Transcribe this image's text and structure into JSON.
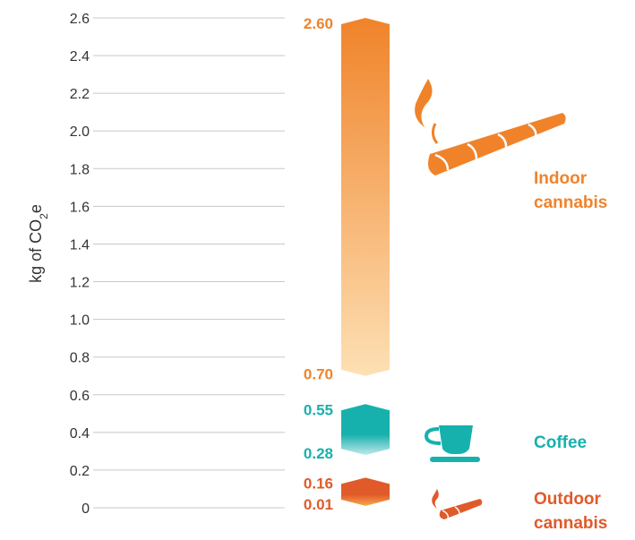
{
  "chart_data": {
    "type": "bar",
    "title": "",
    "ylabel": "kg of CO2e",
    "ylabel_parts": {
      "main": "kg of CO",
      "sub": "2",
      "tail": "e"
    },
    "ylim": [
      0,
      2.6
    ],
    "yticks": [
      {
        "value": 0,
        "label": "0"
      },
      {
        "value": 0.2,
        "label": "0.2"
      },
      {
        "value": 0.4,
        "label": "0.4"
      },
      {
        "value": 0.6,
        "label": "0.6"
      },
      {
        "value": 0.8,
        "label": "0.8"
      },
      {
        "value": 1.0,
        "label": "1.0"
      },
      {
        "value": 1.2,
        "label": "1.2"
      },
      {
        "value": 1.4,
        "label": "1.4"
      },
      {
        "value": 1.6,
        "label": "1.6"
      },
      {
        "value": 1.8,
        "label": "1.8"
      },
      {
        "value": 2.0,
        "label": "2.0"
      },
      {
        "value": 2.2,
        "label": "2.2"
      },
      {
        "value": 2.4,
        "label": "2.4"
      },
      {
        "value": 2.6,
        "label": "2.6"
      }
    ],
    "grid": true,
    "ranges": [
      {
        "name": "Indoor cannabis",
        "label_lines": [
          "Indoor",
          "cannabis"
        ],
        "low": 0.7,
        "high": 2.6,
        "low_label": "0.70",
        "high_label": "2.60",
        "color": "#f0832a",
        "light_color": "#fde0b4",
        "icon": "joint-icon"
      },
      {
        "name": "Coffee",
        "label_lines": [
          "Coffee"
        ],
        "low": 0.28,
        "high": 0.55,
        "low_label": "0.28",
        "high_label": "0.55",
        "color": "#17b1ad",
        "light_color": "#c2e9ec",
        "icon": "coffee-cup-icon"
      },
      {
        "name": "Outdoor cannabis",
        "label_lines": [
          "Outdoor",
          "cannabis"
        ],
        "low": 0.01,
        "high": 0.16,
        "low_label": "0.01",
        "high_label": "0.16",
        "color": "#e05a2a",
        "light_color": "#f7a94a",
        "icon": "small-joint-icon"
      }
    ]
  },
  "colors": {
    "grid": "#c8c8c8",
    "indoor": "#f0832a",
    "coffee": "#17b1ad",
    "outdoor": "#e05a2a"
  }
}
